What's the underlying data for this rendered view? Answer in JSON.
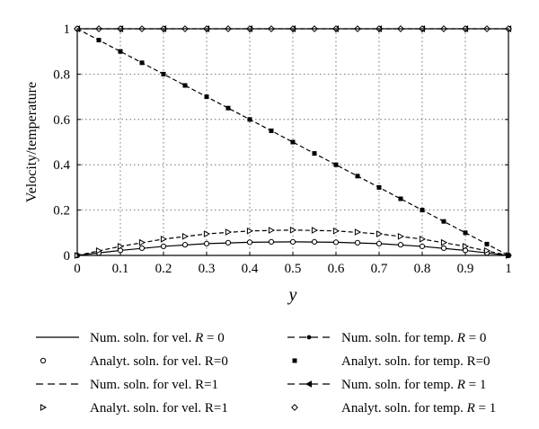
{
  "chart_data": {
    "type": "line",
    "xlabel": "y",
    "ylabel": "Velocity/temperature",
    "xlim": [
      0,
      1
    ],
    "ylim": [
      0,
      1
    ],
    "xticks": [
      0,
      0.1,
      0.2,
      0.3,
      0.4,
      0.5,
      0.6,
      0.7,
      0.8,
      0.9,
      1
    ],
    "yticks": [
      0,
      0.2,
      0.4,
      0.6,
      0.8,
      1
    ],
    "xtick_labels": [
      "0",
      "0.1",
      "0.2",
      "0.3",
      "0.4",
      "0.5",
      "0.6",
      "0.7",
      "0.8",
      "0.9",
      "1"
    ],
    "ytick_labels": [
      "0",
      "0.2",
      "0.4",
      "0.6",
      "0.8",
      "1"
    ],
    "grid": true,
    "legend_position": "bottom",
    "series": [
      {
        "name": "Num. soln. for vel. R = 0",
        "style": "solid",
        "marker": "none",
        "x": [
          0,
          0.1,
          0.2,
          0.3,
          0.4,
          0.5,
          0.6,
          0.7,
          0.8,
          0.9,
          1
        ],
        "values": [
          0,
          0.022,
          0.04,
          0.052,
          0.058,
          0.06,
          0.058,
          0.052,
          0.04,
          0.022,
          0
        ]
      },
      {
        "name": "Analyt. soln. for vel. R=0",
        "style": "none",
        "marker": "circle",
        "x": [
          0,
          0.05,
          0.1,
          0.15,
          0.2,
          0.25,
          0.3,
          0.35,
          0.4,
          0.45,
          0.5,
          0.55,
          0.6,
          0.65,
          0.7,
          0.75,
          0.8,
          0.85,
          0.9,
          0.95,
          1
        ],
        "values": [
          0,
          0.011,
          0.022,
          0.032,
          0.04,
          0.047,
          0.052,
          0.056,
          0.058,
          0.06,
          0.06,
          0.06,
          0.058,
          0.056,
          0.052,
          0.047,
          0.04,
          0.032,
          0.022,
          0.011,
          0
        ]
      },
      {
        "name": "Num. soln. for vel. R=1",
        "style": "dashed",
        "marker": "none",
        "x": [
          0,
          0.1,
          0.2,
          0.3,
          0.4,
          0.5,
          0.6,
          0.7,
          0.8,
          0.9,
          1
        ],
        "values": [
          0,
          0.04,
          0.072,
          0.095,
          0.108,
          0.112,
          0.108,
          0.095,
          0.072,
          0.04,
          0
        ]
      },
      {
        "name": "Analyt. soln. for vel. R=1",
        "style": "none",
        "marker": "triangle-right",
        "x": [
          0,
          0.05,
          0.1,
          0.15,
          0.2,
          0.25,
          0.3,
          0.35,
          0.4,
          0.45,
          0.5,
          0.55,
          0.6,
          0.65,
          0.7,
          0.75,
          0.8,
          0.85,
          0.9,
          0.95,
          1
        ],
        "values": [
          0,
          0.021,
          0.04,
          0.057,
          0.072,
          0.084,
          0.095,
          0.103,
          0.108,
          0.111,
          0.112,
          0.111,
          0.108,
          0.103,
          0.095,
          0.084,
          0.072,
          0.057,
          0.04,
          0.021,
          0
        ]
      },
      {
        "name": "Num. soln. for temp. R = 0",
        "style": "dashed",
        "marker": "dot",
        "x": [
          0,
          0.1,
          0.2,
          0.3,
          0.4,
          0.5,
          0.6,
          0.7,
          0.8,
          0.9,
          1
        ],
        "values": [
          1,
          0.9,
          0.8,
          0.7,
          0.6,
          0.5,
          0.4,
          0.3,
          0.2,
          0.1,
          0
        ]
      },
      {
        "name": "Analyt. soln. for temp. R=0",
        "style": "none",
        "marker": "square",
        "x": [
          0,
          0.05,
          0.1,
          0.15,
          0.2,
          0.25,
          0.3,
          0.35,
          0.4,
          0.45,
          0.5,
          0.55,
          0.6,
          0.65,
          0.7,
          0.75,
          0.8,
          0.85,
          0.9,
          0.95,
          1
        ],
        "values": [
          1,
          0.95,
          0.9,
          0.85,
          0.8,
          0.75,
          0.7,
          0.65,
          0.6,
          0.55,
          0.5,
          0.45,
          0.4,
          0.35,
          0.3,
          0.25,
          0.2,
          0.15,
          0.1,
          0.05,
          0
        ]
      },
      {
        "name": "Num. soln. for temp. R = 1",
        "style": "dashed",
        "marker": "triangle-left",
        "x": [
          0,
          0.1,
          0.2,
          0.3,
          0.4,
          0.5,
          0.6,
          0.7,
          0.8,
          0.9,
          1
        ],
        "values": [
          1,
          1,
          1,
          1,
          1,
          1,
          1,
          1,
          1,
          1,
          1
        ]
      },
      {
        "name": "Analyt. soln. for temp. R = 1",
        "style": "none",
        "marker": "diamond",
        "x": [
          0,
          0.05,
          0.1,
          0.15,
          0.2,
          0.25,
          0.3,
          0.35,
          0.4,
          0.45,
          0.5,
          0.55,
          0.6,
          0.65,
          0.7,
          0.75,
          0.8,
          0.85,
          0.9,
          0.95,
          1
        ],
        "values": [
          1,
          1,
          1,
          1,
          1,
          1,
          1,
          1,
          1,
          1,
          1,
          1,
          1,
          1,
          1,
          1,
          1,
          1,
          1,
          1,
          1
        ]
      }
    ],
    "legend": [
      {
        "text": "Num. soln. for vel. ",
        "italic": "R",
        "suffix": " = 0",
        "symbol": "solid"
      },
      {
        "text": "Num. soln. for temp. ",
        "italic": "R",
        "suffix": " = 0",
        "symbol": "dashed-dot"
      },
      {
        "text": "Analyt. soln. for vel. R=0",
        "italic": "",
        "suffix": "",
        "symbol": "circle"
      },
      {
        "text": "Analyt. soln. for temp. R=0",
        "italic": "",
        "suffix": "",
        "symbol": "square"
      },
      {
        "text": "Num. soln. for vel. R=1",
        "italic": "",
        "suffix": "",
        "symbol": "dashed"
      },
      {
        "text": "Num. soln. for temp. ",
        "italic": "R",
        "suffix": " = 1",
        "symbol": "dashed-triangle-left"
      },
      {
        "text": "Analyt. soln. for vel. R=1",
        "italic": "",
        "suffix": "",
        "symbol": "triangle-right"
      },
      {
        "text": "Analyt. soln. for temp. ",
        "italic": "R",
        "suffix": " = 1",
        "symbol": "diamond"
      }
    ]
  }
}
